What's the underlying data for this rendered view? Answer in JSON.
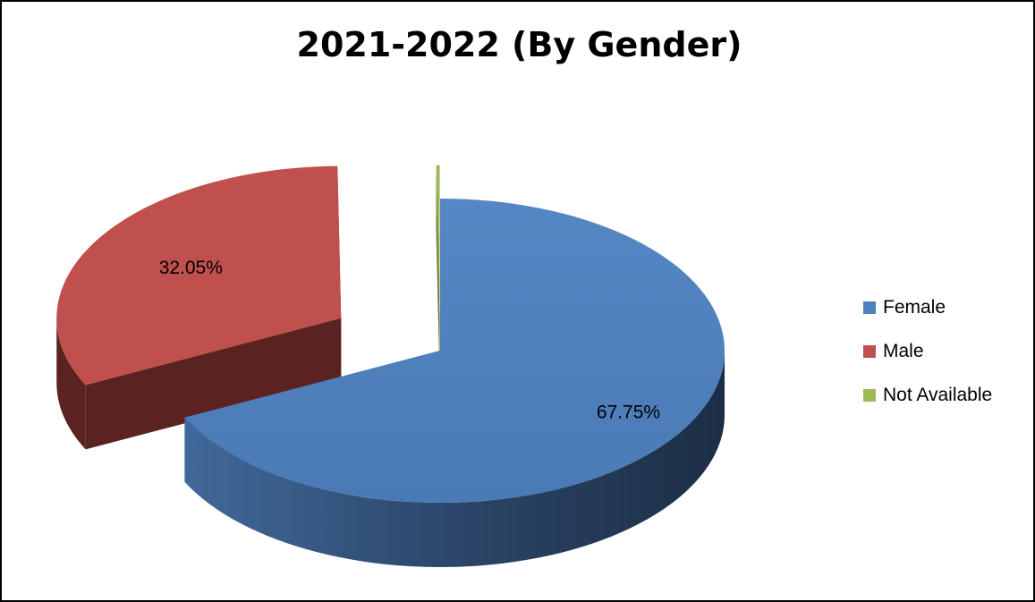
{
  "chart_data": {
    "type": "pie",
    "title": "2021-2022 (By Gender)",
    "categories": [
      "Female",
      "Male",
      "Not Available"
    ],
    "values": [
      67.75,
      32.05,
      0.2
    ],
    "data_labels": [
      "67.75%",
      "32.05%",
      ""
    ],
    "colors": [
      "#4F81BD",
      "#C0504D",
      "#9BBB59"
    ],
    "legend_position": "right",
    "three_d": true,
    "exploded": true
  }
}
